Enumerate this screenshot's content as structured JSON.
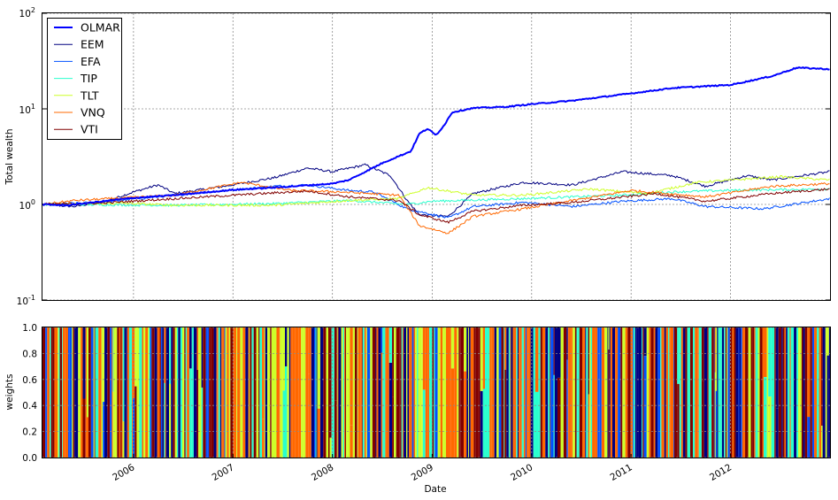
{
  "chart_data": [
    {
      "type": "line",
      "ylabel": "Total wealth",
      "yscale": "log",
      "ylim": [
        0.1,
        100
      ],
      "y_ticks": [
        {
          "label_base": "10",
          "label_exp": "-1",
          "value": 0.1
        },
        {
          "label_base": "10",
          "label_exp": "0",
          "value": 1
        },
        {
          "label_base": "10",
          "label_exp": "1",
          "value": 10
        },
        {
          "label_base": "10",
          "label_exp": "2",
          "value": 100
        }
      ],
      "xlim": [
        "2005-02-01",
        "2012-12-31"
      ],
      "grid": true,
      "legend_position": "upper-left",
      "series": [
        {
          "name": "OLMAR",
          "color": "#0000ff",
          "width": 2,
          "points": [
            [
              "2005-02-01",
              1.0
            ],
            [
              "2005-05-01",
              0.98
            ],
            [
              "2005-09-01",
              1.07
            ],
            [
              "2006-01-01",
              1.17
            ],
            [
              "2006-06-01",
              1.25
            ],
            [
              "2007-01-01",
              1.42
            ],
            [
              "2007-06-01",
              1.5
            ],
            [
              "2008-01-01",
              1.65
            ],
            [
              "2008-03-01",
              1.8
            ],
            [
              "2008-05-01",
              2.2
            ],
            [
              "2008-07-01",
              2.7
            ],
            [
              "2008-09-01",
              3.2
            ],
            [
              "2008-10-15",
              3.6
            ],
            [
              "2008-11-15",
              5.5
            ],
            [
              "2008-12-15",
              6.2
            ],
            [
              "2009-01-15",
              5.3
            ],
            [
              "2009-02-15",
              6.8
            ],
            [
              "2009-03-15",
              9.2
            ],
            [
              "2009-06-01",
              10.2
            ],
            [
              "2009-10-01",
              10.5
            ],
            [
              "2010-01-01",
              11.2
            ],
            [
              "2010-06-01",
              12.2
            ],
            [
              "2011-01-01",
              14.5
            ],
            [
              "2011-06-01",
              16.5
            ],
            [
              "2012-01-01",
              17.8
            ],
            [
              "2012-06-01",
              22.0
            ],
            [
              "2012-09-01",
              27.0
            ],
            [
              "2012-12-31",
              26.0
            ]
          ]
        },
        {
          "name": "EEM",
          "color": "#000080",
          "width": 1,
          "points": [
            [
              "2005-02-01",
              1.0
            ],
            [
              "2005-06-01",
              0.95
            ],
            [
              "2005-10-01",
              1.1
            ],
            [
              "2006-01-01",
              1.35
            ],
            [
              "2006-04-01",
              1.6
            ],
            [
              "2006-06-01",
              1.3
            ],
            [
              "2006-12-01",
              1.55
            ],
            [
              "2007-06-01",
              1.9
            ],
            [
              "2007-10-01",
              2.4
            ],
            [
              "2008-01-01",
              2.2
            ],
            [
              "2008-05-01",
              2.6
            ],
            [
              "2008-08-01",
              2.0
            ],
            [
              "2008-10-01",
              1.1
            ],
            [
              "2008-11-15",
              0.78
            ],
            [
              "2009-03-01",
              0.75
            ],
            [
              "2009-06-01",
              1.3
            ],
            [
              "2009-12-01",
              1.7
            ],
            [
              "2010-06-01",
              1.6
            ],
            [
              "2010-12-01",
              2.2
            ],
            [
              "2011-06-01",
              2.0
            ],
            [
              "2011-10-01",
              1.55
            ],
            [
              "2012-03-01",
              2.0
            ],
            [
              "2012-06-01",
              1.8
            ],
            [
              "2012-12-31",
              2.2
            ]
          ]
        },
        {
          "name": "EFA",
          "color": "#0050ff",
          "width": 1,
          "points": [
            [
              "2005-02-01",
              1.0
            ],
            [
              "2005-09-01",
              1.05
            ],
            [
              "2006-06-01",
              1.25
            ],
            [
              "2007-06-01",
              1.55
            ],
            [
              "2007-10-01",
              1.6
            ],
            [
              "2008-03-01",
              1.4
            ],
            [
              "2008-06-01",
              1.35
            ],
            [
              "2008-10-01",
              0.9
            ],
            [
              "2009-03-01",
              0.72
            ],
            [
              "2009-06-01",
              0.95
            ],
            [
              "2009-12-01",
              1.05
            ],
            [
              "2010-06-01",
              0.95
            ],
            [
              "2010-12-01",
              1.08
            ],
            [
              "2011-06-01",
              1.15
            ],
            [
              "2011-10-01",
              0.95
            ],
            [
              "2012-05-01",
              0.9
            ],
            [
              "2012-12-31",
              1.15
            ]
          ]
        },
        {
          "name": "TIP",
          "color": "#29ffce",
          "width": 1,
          "points": [
            [
              "2005-02-01",
              1.0
            ],
            [
              "2006-06-01",
              0.98
            ],
            [
              "2007-06-01",
              1.02
            ],
            [
              "2008-03-01",
              1.1
            ],
            [
              "2008-10-01",
              1.0
            ],
            [
              "2009-01-01",
              1.08
            ],
            [
              "2009-12-01",
              1.15
            ],
            [
              "2010-12-01",
              1.25
            ],
            [
              "2011-06-01",
              1.35
            ],
            [
              "2011-12-01",
              1.4
            ],
            [
              "2012-12-31",
              1.45
            ]
          ]
        },
        {
          "name": "TLT",
          "color": "#ceff29",
          "width": 1,
          "points": [
            [
              "2005-02-01",
              1.0
            ],
            [
              "2005-12-01",
              1.03
            ],
            [
              "2006-06-01",
              0.98
            ],
            [
              "2007-06-01",
              0.98
            ],
            [
              "2008-03-01",
              1.1
            ],
            [
              "2008-09-01",
              1.15
            ],
            [
              "2008-12-15",
              1.5
            ],
            [
              "2009-06-01",
              1.25
            ],
            [
              "2009-12-01",
              1.25
            ],
            [
              "2010-08-01",
              1.45
            ],
            [
              "2011-03-01",
              1.3
            ],
            [
              "2011-09-01",
              1.7
            ],
            [
              "2012-07-01",
              1.95
            ],
            [
              "2012-12-31",
              1.8
            ]
          ]
        },
        {
          "name": "VNQ",
          "color": "#ff6800",
          "width": 1,
          "points": [
            [
              "2005-02-01",
              1.0
            ],
            [
              "2005-06-01",
              1.1
            ],
            [
              "2006-06-01",
              1.25
            ],
            [
              "2007-02-01",
              1.7
            ],
            [
              "2007-08-01",
              1.4
            ],
            [
              "2008-02-01",
              1.35
            ],
            [
              "2008-09-01",
              1.25
            ],
            [
              "2008-11-15",
              0.6
            ],
            [
              "2009-03-01",
              0.5
            ],
            [
              "2009-06-01",
              0.75
            ],
            [
              "2009-12-01",
              0.9
            ],
            [
              "2010-06-01",
              1.1
            ],
            [
              "2011-01-01",
              1.4
            ],
            [
              "2011-10-01",
              1.2
            ],
            [
              "2012-06-01",
              1.55
            ],
            [
              "2012-12-31",
              1.65
            ]
          ]
        },
        {
          "name": "VTI",
          "color": "#800000",
          "width": 1,
          "points": [
            [
              "2005-02-01",
              1.0
            ],
            [
              "2005-09-01",
              1.03
            ],
            [
              "2006-06-01",
              1.15
            ],
            [
              "2007-06-01",
              1.32
            ],
            [
              "2007-10-01",
              1.38
            ],
            [
              "2008-03-01",
              1.2
            ],
            [
              "2008-09-01",
              1.1
            ],
            [
              "2008-11-15",
              0.78
            ],
            [
              "2009-03-01",
              0.65
            ],
            [
              "2009-06-01",
              0.85
            ],
            [
              "2009-12-01",
              0.98
            ],
            [
              "2010-06-01",
              1.05
            ],
            [
              "2011-04-01",
              1.3
            ],
            [
              "2011-10-01",
              1.08
            ],
            [
              "2012-06-01",
              1.3
            ],
            [
              "2012-12-31",
              1.45
            ]
          ]
        }
      ]
    },
    {
      "type": "area",
      "stacked": true,
      "xlabel": "Date",
      "ylabel": "weights",
      "ylim": [
        0,
        1
      ],
      "y_ticks": [
        "0.0",
        "0.2",
        "0.4",
        "0.6",
        "0.8",
        "1.0"
      ],
      "x_ticks": [
        "2006",
        "2007",
        "2008",
        "2009",
        "2010",
        "2011",
        "2012"
      ],
      "grid": true,
      "colors": [
        "#000080",
        "#0050ff",
        "#29ffce",
        "#ceff29",
        "#ff6800",
        "#800000"
      ]
    }
  ]
}
